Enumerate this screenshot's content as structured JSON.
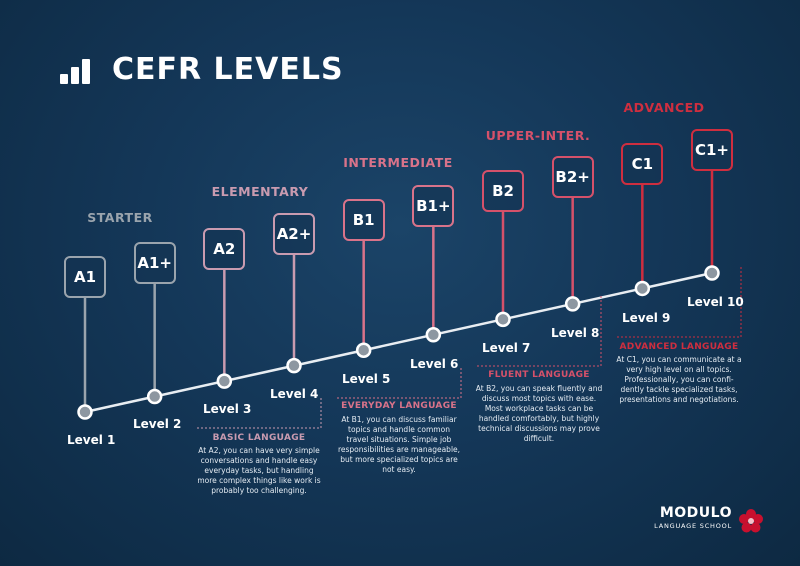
{
  "title": "CEFR LEVELS",
  "icons": {
    "title_icon": "bar-chart-icon",
    "brand_icon": "red-flower-icon"
  },
  "colors": {
    "starter": "#9aa4ad",
    "elementary": "#c99bb0",
    "intermediate": "#d9738a",
    "upper_intermediate": "#d5516a",
    "advanced": "#cf2e3f",
    "line": "#e8edf2"
  },
  "categories": [
    {
      "label": "STARTER",
      "group": "starter"
    },
    {
      "label": "ELEMENTARY",
      "group": "elementary"
    },
    {
      "label": "INTERMEDIATE",
      "group": "intermediate"
    },
    {
      "label": "UPPER-INTER.",
      "group": "upper_intermediate"
    },
    {
      "label": "ADVANCED",
      "group": "advanced"
    }
  ],
  "levels": [
    {
      "code": "A1",
      "level": "Level 1",
      "group": "starter"
    },
    {
      "code": "A1+",
      "level": "Level 2",
      "group": "starter"
    },
    {
      "code": "A2",
      "level": "Level 3",
      "group": "elementary"
    },
    {
      "code": "A2+",
      "level": "Level 4",
      "group": "elementary"
    },
    {
      "code": "B1",
      "level": "Level 5",
      "group": "intermediate"
    },
    {
      "code": "B1+",
      "level": "Level 6",
      "group": "intermediate"
    },
    {
      "code": "B2",
      "level": "Level 7",
      "group": "upper_intermediate"
    },
    {
      "code": "B2+",
      "level": "Level 8",
      "group": "upper_intermediate"
    },
    {
      "code": "C1",
      "level": "Level 9",
      "group": "advanced"
    },
    {
      "code": "C1+",
      "level": "Level 10",
      "group": "advanced"
    }
  ],
  "descriptions": [
    {
      "heading": "BASIC LANGUAGE",
      "group": "elementary",
      "lines": [
        "At A2, you can have very simple",
        "conversations and handle easy",
        "everyday tasks, but handling",
        "more complex things like work is",
        "probably too challenging."
      ]
    },
    {
      "heading": "EVERYDAY LANGUAGE",
      "group": "intermediate",
      "lines": [
        "At B1, you can discuss familiar",
        "topics and handle common",
        "travel situations. Simple job",
        "responsibilities are manageable,",
        "but more specialized topics are",
        "not easy."
      ]
    },
    {
      "heading": "FLUENT LANGUAGE",
      "group": "upper_intermediate",
      "lines": [
        "At B2, you can speak fluently and",
        "discuss most topics with ease.",
        "Most workplace tasks can be",
        "handled comfortably, but highly",
        "technical discussions may prove",
        "difficult."
      ]
    },
    {
      "heading": "ADVANCED LANGUAGE",
      "group": "advanced",
      "lines": [
        "At C1, you can communicate at a",
        "very high level on all topics.",
        "Professionally, you can confi-",
        "dently tackle specialized tasks,",
        "presentations and negotiations."
      ]
    }
  ],
  "brand": {
    "name": "MODULO",
    "tagline": "LANGUAGE SCHOOL"
  }
}
